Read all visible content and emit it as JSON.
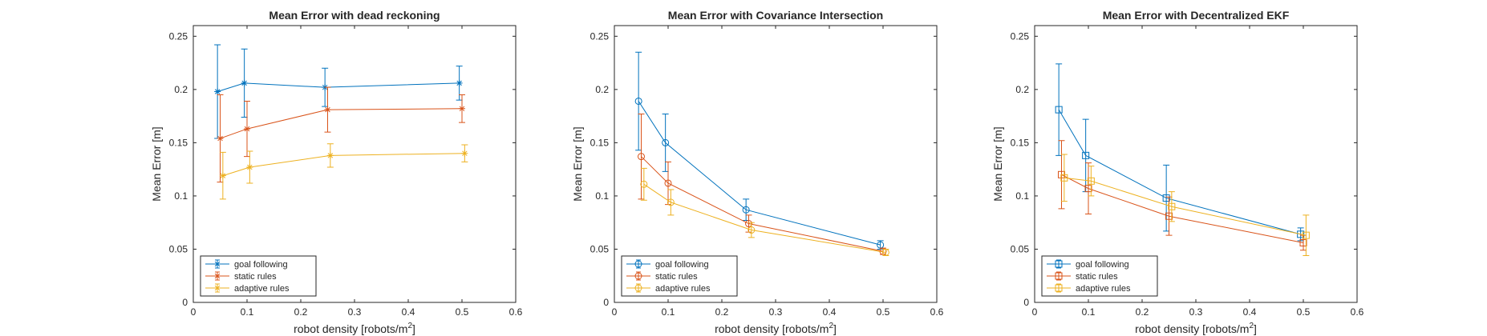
{
  "chart_data": [
    {
      "type": "line",
      "title": "Mean Error with dead reckoning",
      "xlabel": "robot density [robots/m",
      "xlabel_sup": "2",
      "xlabel_end": "]",
      "ylabel": "Mean Error [m]",
      "xlim": [
        0,
        0.6
      ],
      "ylim": [
        0,
        0.26
      ],
      "xticks": [
        "0",
        "0.1",
        "0.2",
        "0.3",
        "0.4",
        "0.5",
        "0.6"
      ],
      "yticks": [
        "0",
        "0.05",
        "0.1",
        "0.15",
        "0.2",
        "0.25"
      ],
      "marker": "asterisk",
      "grid": false,
      "legend_position": "bottom-left",
      "series": [
        {
          "name": "goal following",
          "color": "#0072BD",
          "x": [
            0.045,
            0.095,
            0.245,
            0.495
          ],
          "y": [
            0.198,
            0.206,
            0.202,
            0.206
          ],
          "err": [
            0.044,
            0.032,
            0.018,
            0.016
          ]
        },
        {
          "name": "static rules",
          "color": "#D95319",
          "x": [
            0.05,
            0.1,
            0.25,
            0.5
          ],
          "y": [
            0.154,
            0.163,
            0.181,
            0.182
          ],
          "err": [
            0.041,
            0.026,
            0.021,
            0.013
          ]
        },
        {
          "name": "adaptive rules",
          "color": "#EDB120",
          "x": [
            0.055,
            0.105,
            0.255,
            0.505
          ],
          "y": [
            0.119,
            0.127,
            0.138,
            0.14
          ],
          "err": [
            0.022,
            0.015,
            0.011,
            0.008
          ]
        }
      ]
    },
    {
      "type": "line",
      "title": "Mean Error with Covariance Intersection",
      "xlabel": "robot density [robots/m",
      "xlabel_sup": "2",
      "xlabel_end": "]",
      "ylabel": "Mean Error [m]",
      "xlim": [
        0,
        0.6
      ],
      "ylim": [
        0,
        0.26
      ],
      "xticks": [
        "0",
        "0.1",
        "0.2",
        "0.3",
        "0.4",
        "0.5",
        "0.6"
      ],
      "yticks": [
        "0",
        "0.05",
        "0.1",
        "0.15",
        "0.2",
        "0.25"
      ],
      "marker": "circle",
      "grid": false,
      "legend_position": "bottom-left",
      "series": [
        {
          "name": "goal following",
          "color": "#0072BD",
          "x": [
            0.045,
            0.095,
            0.245,
            0.495
          ],
          "y": [
            0.189,
            0.15,
            0.087,
            0.054
          ],
          "err": [
            0.046,
            0.027,
            0.01,
            0.004
          ]
        },
        {
          "name": "static rules",
          "color": "#D95319",
          "x": [
            0.05,
            0.1,
            0.25,
            0.5
          ],
          "y": [
            0.137,
            0.112,
            0.074,
            0.048
          ],
          "err": [
            0.04,
            0.02,
            0.008,
            0.003
          ]
        },
        {
          "name": "adaptive rules",
          "color": "#EDB120",
          "x": [
            0.055,
            0.105,
            0.255,
            0.505
          ],
          "y": [
            0.111,
            0.094,
            0.068,
            0.047
          ],
          "err": [
            0.015,
            0.012,
            0.007,
            0.003
          ]
        }
      ]
    },
    {
      "type": "line",
      "title": "Mean Error with Decentralized EKF",
      "xlabel": "robot density [robots/m",
      "xlabel_sup": "2",
      "xlabel_end": "]",
      "ylabel": "Mean Error [m]",
      "xlim": [
        0,
        0.6
      ],
      "ylim": [
        0,
        0.26
      ],
      "xticks": [
        "0",
        "0.1",
        "0.2",
        "0.3",
        "0.4",
        "0.5",
        "0.6"
      ],
      "yticks": [
        "0",
        "0.05",
        "0.1",
        "0.15",
        "0.2",
        "0.25"
      ],
      "marker": "square",
      "grid": false,
      "legend_position": "bottom-left",
      "series": [
        {
          "name": "goal following",
          "color": "#0072BD",
          "x": [
            0.045,
            0.095,
            0.245,
            0.495
          ],
          "y": [
            0.181,
            0.138,
            0.098,
            0.064
          ],
          "err": [
            0.043,
            0.034,
            0.031,
            0.006
          ]
        },
        {
          "name": "static rules",
          "color": "#D95319",
          "x": [
            0.05,
            0.1,
            0.25,
            0.5
          ],
          "y": [
            0.12,
            0.107,
            0.081,
            0.056
          ],
          "err": [
            0.032,
            0.024,
            0.018,
            0.007
          ]
        },
        {
          "name": "adaptive rules",
          "color": "#EDB120",
          "x": [
            0.055,
            0.105,
            0.255,
            0.505
          ],
          "y": [
            0.117,
            0.114,
            0.09,
            0.063
          ],
          "err": [
            0.022,
            0.014,
            0.014,
            0.019
          ]
        }
      ]
    }
  ]
}
